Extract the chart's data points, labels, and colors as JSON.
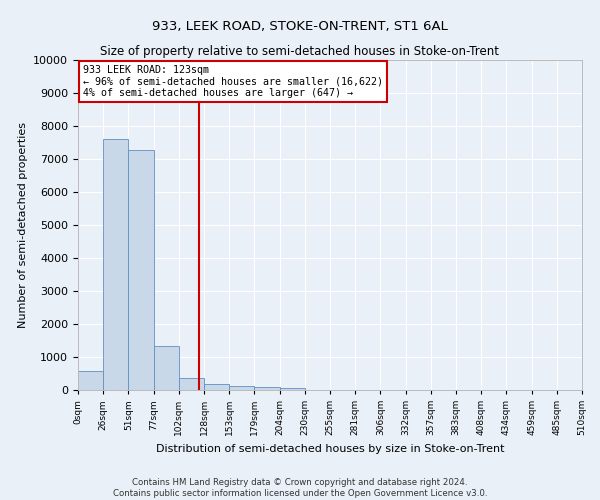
{
  "title": "933, LEEK ROAD, STOKE-ON-TRENT, ST1 6AL",
  "subtitle": "Size of property relative to semi-detached houses in Stoke-on-Trent",
  "xlabel": "Distribution of semi-detached houses by size in Stoke-on-Trent",
  "ylabel": "Number of semi-detached properties",
  "bin_labels": [
    "0sqm",
    "26sqm",
    "51sqm",
    "77sqm",
    "102sqm",
    "128sqm",
    "153sqm",
    "179sqm",
    "204sqm",
    "230sqm",
    "255sqm",
    "281sqm",
    "306sqm",
    "332sqm",
    "357sqm",
    "383sqm",
    "408sqm",
    "434sqm",
    "459sqm",
    "485sqm",
    "510sqm"
  ],
  "bar_values": [
    570,
    7620,
    7270,
    1330,
    350,
    170,
    130,
    100,
    70,
    0,
    0,
    0,
    0,
    0,
    0,
    0,
    0,
    0,
    0,
    0
  ],
  "bar_color": "#c8d8e8",
  "bar_edge_color": "#6090c0",
  "property_line_x": 4.82,
  "property_line_label": "933 LEEK ROAD: 123sqm",
  "annotation_line1": "← 96% of semi-detached houses are smaller (16,622)",
  "annotation_line2": "4% of semi-detached houses are larger (647) →",
  "annotation_box_color": "#ffffff",
  "annotation_box_edge": "#cc0000",
  "vline_color": "#cc0000",
  "ylim": [
    0,
    10000
  ],
  "footer": "Contains HM Land Registry data © Crown copyright and database right 2024.\nContains public sector information licensed under the Open Government Licence v3.0.",
  "background_color": "#eaf0f8",
  "grid_color": "#ffffff",
  "title_fontsize": 9.5,
  "subtitle_fontsize": 8.5
}
